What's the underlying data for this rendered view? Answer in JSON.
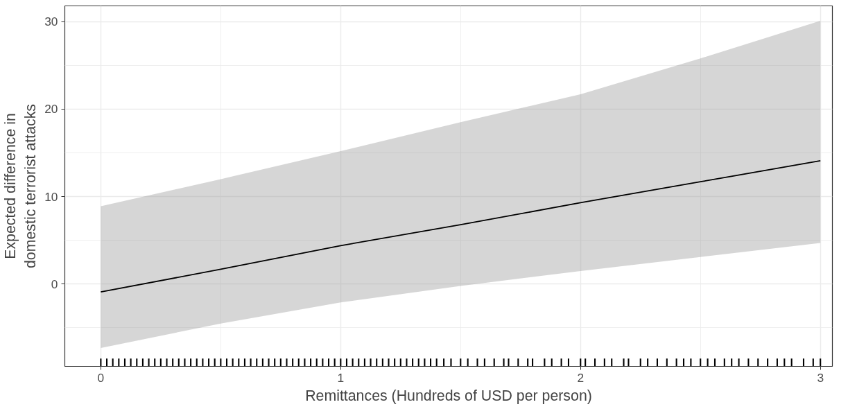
{
  "chart_data": {
    "type": "line",
    "xlabel": "Remittances (Hundreds of USD per person)",
    "ylabel": "Expected difference in\ndomestic terrorist attacks",
    "xlim": [
      -0.15,
      3.05
    ],
    "ylim": [
      -9.4,
      31.8
    ],
    "xticks": [
      0,
      1,
      2,
      3
    ],
    "yticks": [
      0,
      10,
      20,
      30
    ],
    "grid": true,
    "series": [
      {
        "color": "#000000",
        "x": [
          0,
          0.5,
          1,
          1.5,
          2,
          2.5,
          3
        ],
        "values": [
          -0.9,
          1.7,
          4.4,
          6.8,
          9.3,
          11.7,
          14.1
        ],
        "lower": [
          -7.3,
          -4.5,
          -2.1,
          -0.2,
          1.5,
          3.1,
          4.7
        ],
        "upper": [
          8.9,
          12.0,
          15.2,
          18.5,
          21.7,
          25.8,
          30.1
        ]
      },
      {
        "type": "bar",
        "base": [
          -9.4,
          -9.4,
          -9.4,
          -9.4,
          -9.4,
          -9.4,
          -9.4,
          -9.4,
          -9.4,
          -9.4,
          -9.4,
          -9.4,
          -9.4,
          -9.4,
          -9.4,
          -9.4,
          -9.4,
          -9.4,
          -9.4,
          -9.4,
          -9.4,
          -9.4,
          -9.4,
          -9.4,
          -9.4,
          -9.4,
          -9.4,
          -9.4,
          -9.4,
          -9.4,
          -9.4,
          -9.4,
          -9.4,
          -9.4,
          -9.4,
          -9.4,
          -9.4,
          -9.4,
          -9.4,
          -9.4,
          -9.4,
          -9.4,
          -9.4,
          -9.4,
          -9.4,
          -9.4,
          -9.4,
          -9.4,
          -9.4,
          -9.4,
          -9.4,
          -9.4,
          -9.4,
          -9.4,
          -9.4,
          -9.4,
          -9.4,
          -9.4,
          -9.4,
          -9.4,
          -9.4,
          -9.4,
          -9.4,
          -9.4,
          -9.4,
          -9.4,
          -9.4,
          -9.4,
          -9.4,
          -9.4,
          -9.4,
          -9.4,
          -9.4,
          -9.4,
          -9.4,
          -9.4,
          -9.4,
          -9.4,
          -9.4,
          -9.4,
          -9.4,
          -9.4,
          -9.4,
          -9.4,
          -9.4,
          -9.4,
          -9.4,
          -9.4,
          -9.4,
          -9.4,
          -9.4,
          -9.4,
          -9.4,
          -9.4,
          -9.4,
          -9.4,
          -9.4,
          -9.4,
          -9.4,
          -9.4,
          -9.4,
          -9.4
        ],
        "color": "#000000",
        "x": [
          0,
          0.025,
          0.05,
          0.075,
          0.1,
          0.125,
          0.15,
          0.175,
          0.2,
          0.225,
          0.25,
          0.275,
          0.3,
          0.325,
          0.35,
          0.375,
          0.4,
          0.425,
          0.45,
          0.475,
          0.5,
          0.525,
          0.55,
          0.575,
          0.6,
          0.625,
          0.65,
          0.675,
          0.7,
          0.725,
          0.75,
          0.775,
          0.8,
          0.825,
          0.85,
          0.875,
          0.9,
          0.925,
          0.95,
          0.975,
          1,
          1.025,
          1.05,
          1.075,
          1.1,
          1.125,
          1.15,
          1.175,
          1.2,
          1.225,
          1.25,
          1.275,
          1.3,
          1.325,
          1.35,
          1.375,
          1.4,
          1.43,
          1.46,
          1.5,
          1.53,
          1.57,
          1.6,
          1.64,
          1.68,
          1.7,
          1.74,
          1.78,
          1.8,
          1.85,
          1.88,
          1.92,
          1.95,
          2.0,
          2.02,
          2.06,
          2.1,
          2.13,
          2.18,
          2.2,
          2.25,
          2.28,
          2.32,
          2.36,
          2.4,
          2.43,
          2.46,
          2.5,
          2.53,
          2.56,
          2.6,
          2.63,
          2.66,
          2.7,
          2.74,
          2.78,
          2.82,
          2.85,
          2.88,
          2.93,
          2.97,
          3.0
        ],
        "values": [
          0.9,
          0.9,
          0.9,
          0.9,
          0.9,
          0.9,
          0.9,
          0.9,
          0.9,
          0.9,
          0.9,
          0.9,
          0.9,
          0.9,
          0.9,
          0.9,
          0.9,
          0.9,
          0.9,
          0.9,
          0.9,
          0.9,
          0.9,
          0.9,
          0.9,
          0.9,
          0.9,
          0.9,
          0.9,
          0.9,
          0.9,
          0.9,
          0.9,
          0.9,
          0.9,
          0.9,
          0.9,
          0.9,
          0.9,
          0.9,
          0.9,
          0.9,
          0.9,
          0.9,
          0.9,
          0.9,
          0.9,
          0.9,
          0.9,
          0.9,
          0.9,
          0.9,
          0.9,
          0.9,
          0.9,
          0.9,
          0.9,
          0.9,
          0.9,
          0.9,
          0.9,
          0.9,
          0.9,
          0.9,
          0.9,
          0.9,
          0.9,
          0.9,
          0.9,
          0.9,
          0.9,
          0.9,
          0.9,
          0.9,
          0.9,
          0.9,
          0.9,
          0.9,
          0.9,
          0.9,
          0.9,
          0.9,
          0.9,
          0.9,
          0.9,
          0.9,
          0.9,
          0.9,
          0.9,
          0.9,
          0.9,
          0.9,
          0.9,
          0.9,
          0.9,
          0.9,
          0.9,
          0.9,
          0.9,
          0.9,
          0.9,
          0.9
        ]
      }
    ]
  }
}
